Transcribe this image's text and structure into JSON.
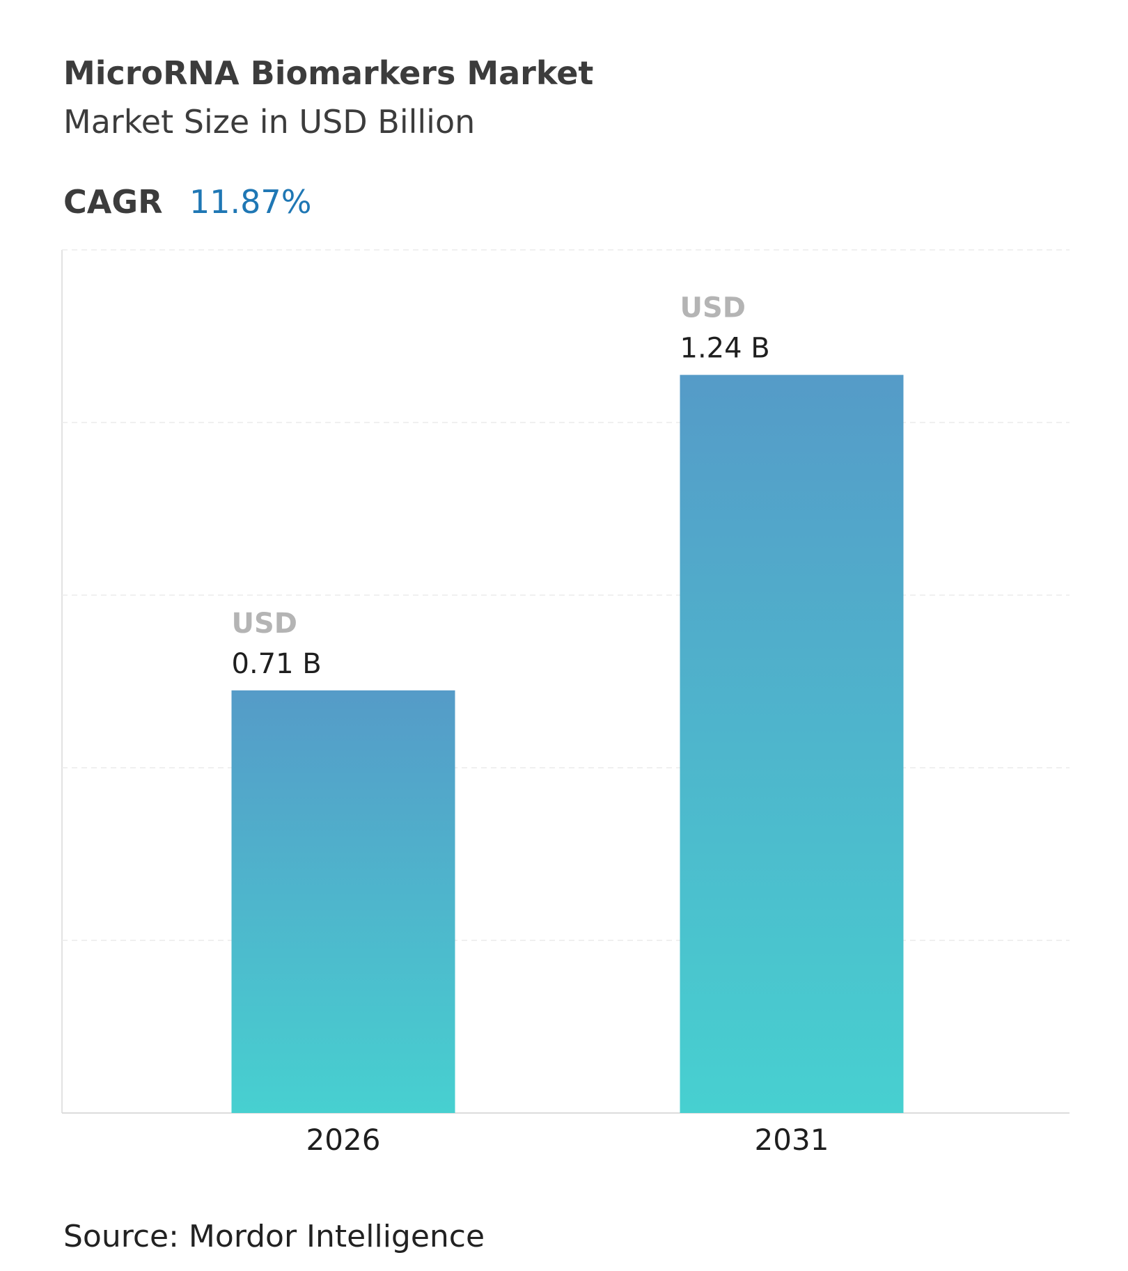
{
  "chart_data": {
    "type": "bar",
    "title": "MicroRNA Biomarkers Market",
    "subtitle": "Market Size in USD Billion",
    "cagr_label": "CAGR",
    "cagr_value": "11.87%",
    "categories": [
      "2026",
      "2031"
    ],
    "values": [
      0.71,
      1.24
    ],
    "value_labels": [
      "0.71 B",
      "1.24 B"
    ],
    "value_prefix": "USD",
    "ylim": [
      0,
      1.45
    ],
    "gradient": {
      "top": "#559bc8",
      "bottom": "#47d0d0"
    },
    "source": "Source: Mordor Intelligence"
  }
}
